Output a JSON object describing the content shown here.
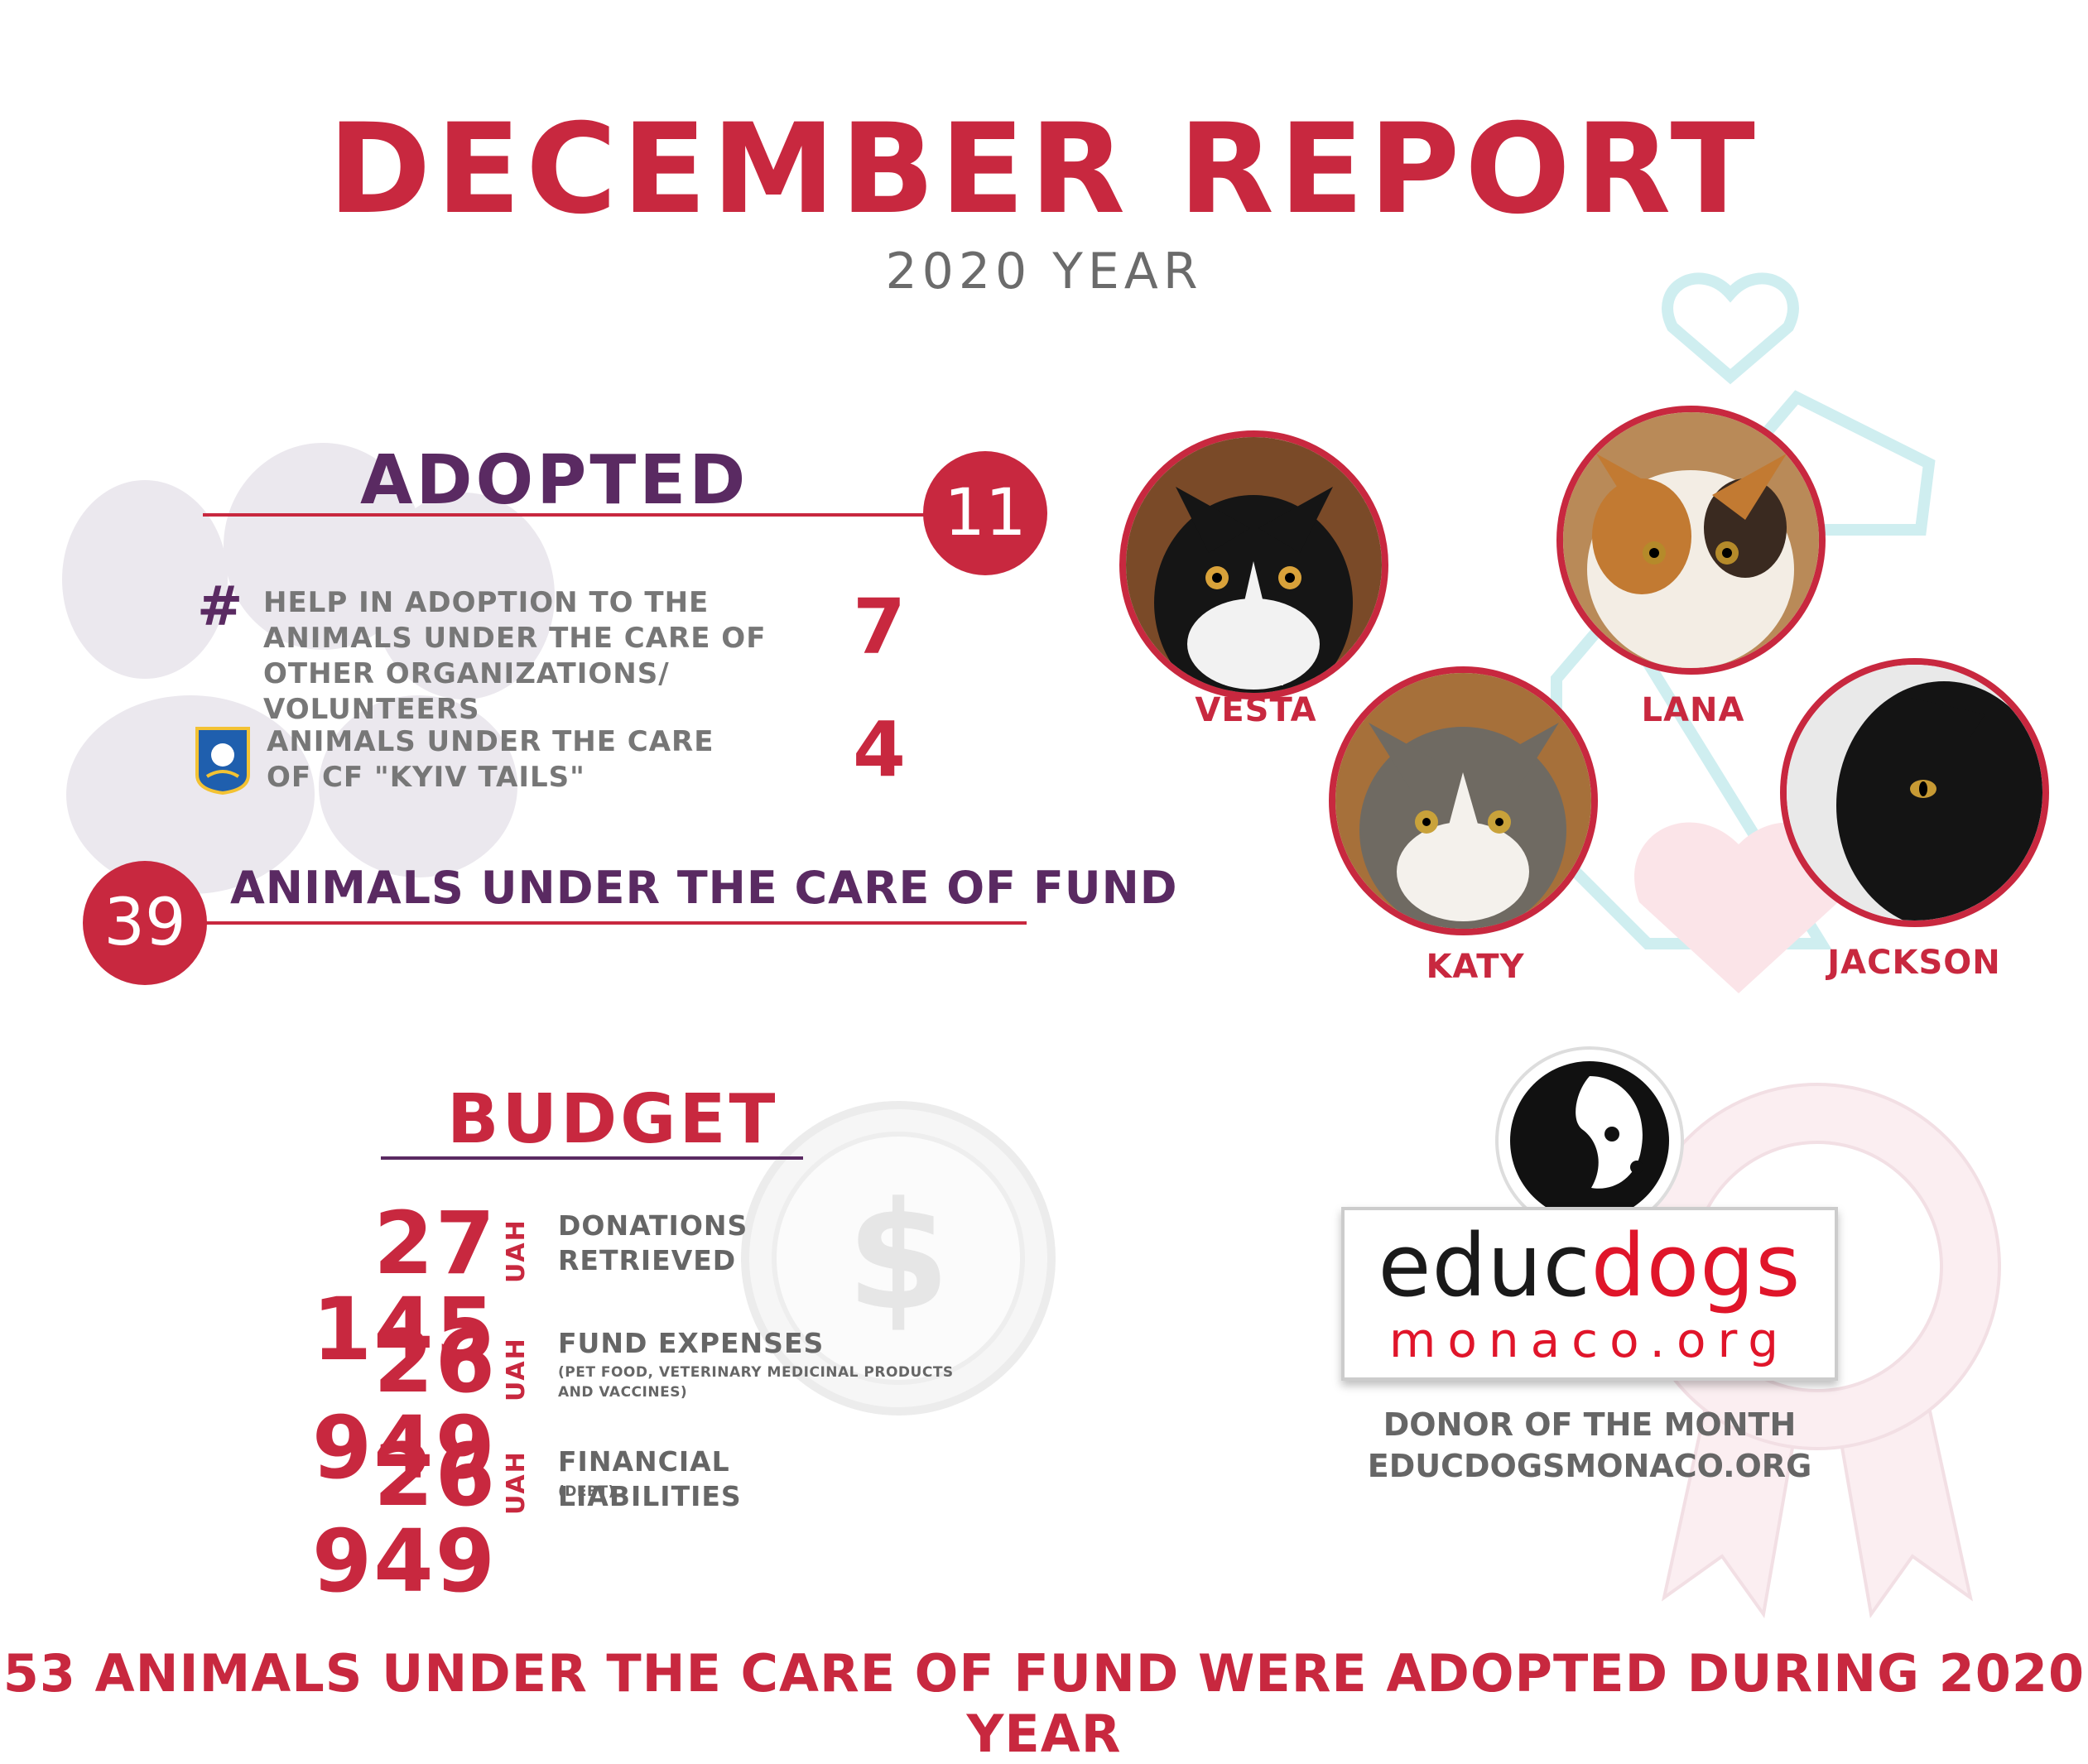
{
  "header": {
    "title": "DECEMBER REPORT",
    "subtitle": "2020 YEAR"
  },
  "adopted": {
    "heading": "ADOPTED",
    "total": "11",
    "items": [
      {
        "label": "HELP IN ADOPTION TO THE ANIMALS UNDER THE CARE OF OTHER ORGANIZATIONS/ VOLUNTEERS",
        "value": "7",
        "icon": "hashtag-icon"
      },
      {
        "label": "ANIMALS UNDER THE CARE OF CF \"KYIV TAILS\"",
        "value": "4",
        "icon": "kyiv-tails-emblem"
      }
    ],
    "under_care_count": "39",
    "under_care_label": "ANIMALS UNDER THE CARE OF FUND"
  },
  "cats": [
    {
      "name": "VESTA"
    },
    {
      "name": "LANA"
    },
    {
      "name": "KATY"
    },
    {
      "name": "JACKSON"
    }
  ],
  "budget": {
    "heading": "BUDGET",
    "currency": "UAH",
    "rows": [
      {
        "amount": "27 145",
        "label": "DONATIONS RETRIEVED",
        "note": ""
      },
      {
        "amount": "26 949",
        "label": "FUND EXPENSES",
        "note": "(PET FOOD, VETERINARY MEDICINAL PRODUCTS AND VACCINES)"
      },
      {
        "amount": "26 949",
        "label": "FINANCIAL LIABILITIES",
        "note": "(DEBT)"
      }
    ]
  },
  "sponsor": {
    "logo_word_black": "educ",
    "logo_word_red": "dogs",
    "logo_domain": "monaco.org",
    "donor_title": "DONOR OF THE MONTH",
    "donor_site": "EDUCDOGSMONACO.ORG"
  },
  "footer": {
    "text": "53 ANIMALS UNDER THE CARE OF FUND WERE ADOPTED DURING 2020 YEAR"
  },
  "colors": {
    "accent_red": "#c8283f",
    "purple": "#5a2a62",
    "gray": "#777777"
  }
}
